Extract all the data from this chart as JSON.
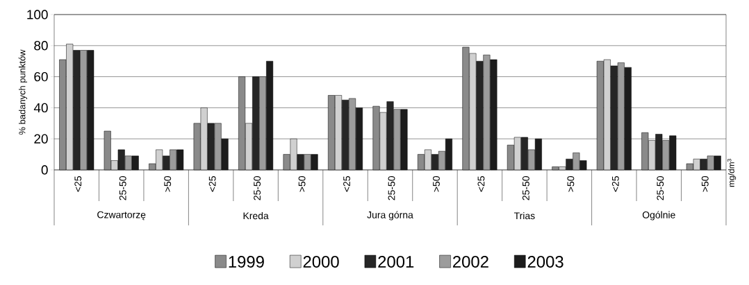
{
  "chart_data": {
    "type": "bar",
    "ylabel": "% badanych punktów",
    "categories": [
      "<25",
      "25-50",
      ">50",
      "<25",
      "25-50",
      ">50",
      "<25",
      "25-50",
      ">50",
      "<25",
      "25-50",
      ">50",
      "<25",
      "25-50",
      ">50"
    ],
    "annotations": [
      "Czwartorzę",
      "Kreda",
      "Jura górna",
      "Trias",
      "Ogólnie",
      "mg/dm$^{3}$"
    ],
    "series": [
      {
        "name": "1999",
        "color": "#8a8a8a",
        "values": [
          71,
          25,
          4,
          30,
          60,
          10,
          48,
          41,
          10,
          79,
          16,
          2,
          70,
          24,
          4
        ]
      },
      {
        "name": "2000",
        "color": "#d0d0d0",
        "values": [
          81,
          6,
          13,
          40,
          30,
          20,
          48,
          37,
          13,
          75,
          21,
          2,
          71,
          19,
          7
        ]
      },
      {
        "name": "2001",
        "color": "#262626",
        "values": [
          77,
          13,
          9,
          30,
          60,
          10,
          45,
          44,
          10,
          70,
          21,
          7,
          67,
          23,
          7
        ]
      },
      {
        "name": "2002",
        "color": "#9c9c9c",
        "values": [
          77,
          9,
          13,
          30,
          60,
          10,
          46,
          39,
          12,
          74,
          13,
          11,
          69,
          19,
          9
        ]
      },
      {
        "name": "2003",
        "color": "#1c1c1c",
        "values": [
          77,
          9,
          13,
          20,
          70,
          10,
          40,
          39,
          20,
          71,
          20,
          6,
          66,
          22,
          9
        ]
      }
    ],
    "ylim": [
      0,
      100
    ],
    "yticks": [
      0,
      20,
      40,
      60,
      80,
      100
    ],
    "grid": "y",
    "legend": "bottom"
  }
}
